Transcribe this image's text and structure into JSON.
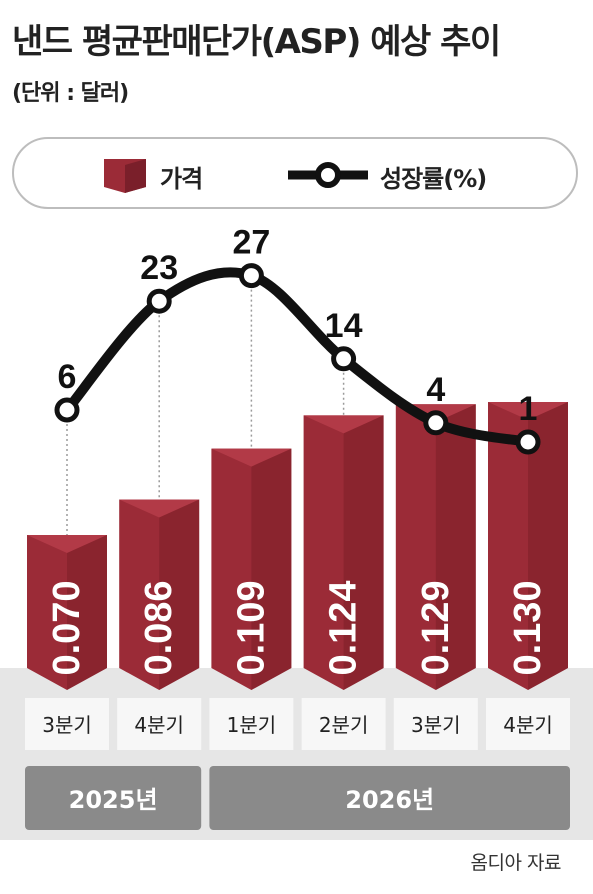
{
  "title": "낸드 평균판매단가(ASP) 예상 추이",
  "unit": "(단위 : 달러)",
  "legend": {
    "price": "가격",
    "growth": "성장률(%)"
  },
  "colors": {
    "bar": "#9b2b37",
    "bar_dark": "#6b1720",
    "line": "#111111",
    "base": "#e6e6e6",
    "year_box": "#8a8a8a"
  },
  "chart_data": {
    "type": "bar",
    "categories": [
      "3분기",
      "4분기",
      "1분기",
      "2분기",
      "3분기",
      "4분기"
    ],
    "groups": [
      {
        "label": "2025년",
        "span": 2
      },
      {
        "label": "2026년",
        "span": 4
      }
    ],
    "series": [
      {
        "name": "가격",
        "type": "bar",
        "values": [
          0.07,
          0.086,
          0.109,
          0.124,
          0.129,
          0.13
        ],
        "labels": [
          "0.070",
          "0.086",
          "0.109",
          "0.124",
          "0.129",
          "0.130"
        ]
      },
      {
        "name": "성장률(%)",
        "type": "line",
        "values": [
          6,
          23,
          27,
          14,
          4,
          1
        ]
      }
    ]
  },
  "source": "옴디아 자료"
}
